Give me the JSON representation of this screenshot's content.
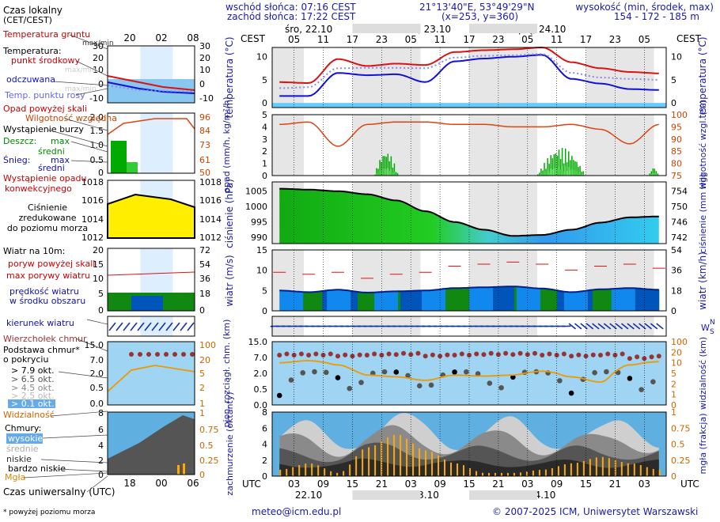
{
  "header": {
    "sunrise": "wschód słońca: 07:16 CEST",
    "sunset": "zachód słońca: 17:22 CEST",
    "coords": "21°13'40\"E, 53°49'29\"N",
    "grid": "(x=253, y=360)",
    "elev_title": "wysokość (min, środek, max)",
    "elev_values": "154 - 172 - 185 m"
  },
  "time": {
    "tz_top": "CEST",
    "tz_bottom": "UTC",
    "top_hours": [
      "05",
      "11",
      "17",
      "23",
      "05",
      "11",
      "17",
      "23",
      "05",
      "11",
      "17",
      "23",
      "05"
    ],
    "bottom_hours": [
      "03",
      "09",
      "15",
      "21",
      "03",
      "09",
      "15",
      "21",
      "03",
      "09",
      "15",
      "21",
      "03"
    ],
    "days": [
      "śro, 22.10",
      "czw, 23.10",
      "pią, 24.10"
    ],
    "days_bottom": [
      "22.10",
      "23.10",
      "24.10"
    ]
  },
  "legend": {
    "local_time": "Czas lokalny",
    "local_time2": "(CET/CEST)",
    "lt_hours": [
      "20",
      "02",
      "08"
    ],
    "ground_temp": "Temperatura gruntu",
    "maxmin": "max/min",
    "temp": "Temperatura:",
    "midpoint": "punkt środkowy",
    "maxmin2": "max/min",
    "felt": "odczuwana",
    "maxmin3": "max/min",
    "dewpoint": "Temp. punktu rosy",
    "precip_above": "Opad powyżej skali",
    "humidity": "Wilgotność względna",
    "storm": "Wystąpienie burzy",
    "rain": "Deszcz:",
    "max": "max",
    "mid": "średni",
    "snow": "Śnieg:",
    "max2": "max",
    "mid2": "średni",
    "conv": "Wystąpienie opadu",
    "conv2": "konwekcyjnego",
    "pressure1": "Ciśnienie",
    "pressure2": "zredukowane",
    "pressure3": "do poziomu morza",
    "wind10": "Wiatr na 10m:",
    "gust_above": "poryw powyżej skali",
    "gust_max": "max porywy wiatru",
    "wind_mean": "prędkość wiatru",
    "wind_mean2": "w środku obszaru",
    "wind_dir": "kierunek wiatru",
    "cloud_top": "Wierzchołek chmur",
    "cloud_base": "Podstawa chmur*",
    "cloud_base2": "o pokryciu",
    "okt79": "> 7.9 okt.",
    "okt65": "> 6.5 okt.",
    "okt45": "> 4.5 okt.",
    "okt25": "> 2.5 okt.",
    "okt01": "> 0.1 okt.",
    "visibility": "Widzialność",
    "clouds": "Chmury:",
    "high": "wysokie",
    "middle": "średnie",
    "low": "niskie",
    "vlow": "bardzo niskie",
    "fog": "Mgła",
    "utc": "Czas uniwersalny (UTC)",
    "utc_hours": [
      "18",
      "00",
      "06"
    ],
    "footnote": "* powyżej poziomu morza"
  },
  "footer": {
    "email": "meteo@icm.edu.pl",
    "copyright": "© 2007-2025 ICM, Uniwersytet Warszawski"
  },
  "colors": {
    "temp": "#dd1111",
    "felt": "#1111dd",
    "dew": "#8888ee",
    "humidity": "#dd4411",
    "rain": "#00aa00",
    "pressure": "#00cc00",
    "wind": "#0044aa",
    "gust": "#dd1111",
    "cloudtop": "#993333",
    "visibility": "#ee9900",
    "fog": "#ffaa00",
    "axis": "#1a1aa8"
  },
  "chart_data": [
    {
      "type": "line",
      "id": "temperature",
      "ylabel": "temperatura (°C)",
      "ylim": [
        -1,
        12
      ],
      "yticks": [
        0,
        5,
        10
      ],
      "x_hours_utc": [
        0,
        6,
        12,
        18,
        24,
        30,
        36,
        42,
        48,
        54,
        60,
        66,
        72,
        78
      ],
      "series": [
        {
          "name": "punkt środkowy",
          "values": [
            4.5,
            4.3,
            9.5,
            8.0,
            8.5,
            8.2,
            11.0,
            11.4,
            11.6,
            12.0,
            8.8,
            7.5,
            6.7,
            6.4
          ]
        },
        {
          "name": "odczuwana",
          "values": [
            1.5,
            1.5,
            6.5,
            6.0,
            6.2,
            4.5,
            9.0,
            9.6,
            10.0,
            10.4,
            5.2,
            4.2,
            3.0,
            2.8
          ]
        },
        {
          "name": "Temp. punktu rosy",
          "values": [
            3.2,
            3.4,
            7.5,
            7.6,
            7.6,
            7.5,
            9.8,
            10.2,
            10.3,
            10.6,
            6.5,
            5.5,
            5.2,
            5.0
          ]
        }
      ]
    },
    {
      "type": "bar",
      "id": "precip_humidity",
      "ylabel": "opad (mm/h, kg/m²/h)",
      "y2label": "wilgotność wzgl. (%)",
      "ylim": [
        0,
        5
      ],
      "y2lim": [
        75,
        100
      ],
      "yticks": [
        0,
        1,
        2,
        3,
        4,
        5
      ],
      "y2ticks": [
        75,
        80,
        85,
        90,
        95,
        100
      ],
      "humidity_x_hours_utc": [
        0,
        6,
        12,
        18,
        24,
        30,
        36,
        42,
        48,
        54,
        60,
        66,
        72,
        78
      ],
      "humidity": [
        96,
        97,
        87,
        96,
        97,
        97,
        96,
        96,
        95,
        95,
        96,
        94,
        88,
        96
      ],
      "rain_events": [
        {
          "center_hour_utc": 22,
          "width_h": 5,
          "peak_mm": 2.0
        },
        {
          "center_hour_utc": 58,
          "width_h": 10,
          "peak_mm": 2.3
        },
        {
          "center_hour_utc": 77,
          "width_h": 2,
          "peak_mm": 0.7
        }
      ]
    },
    {
      "type": "area",
      "id": "pressure",
      "ylabel": "ciśnienie (hPa)",
      "y2label": "ciśnienie (mm Hg)",
      "ylim": [
        988,
        1008
      ],
      "yticks": [
        990,
        995,
        1000,
        1005
      ],
      "y2ticks": [
        742,
        746,
        750,
        754
      ],
      "x_hours_utc": [
        0,
        6,
        12,
        18,
        24,
        30,
        36,
        42,
        48,
        54,
        60,
        66,
        72,
        78
      ],
      "values": [
        1005.8,
        1005.5,
        1005.0,
        1004.0,
        1002.0,
        998.5,
        995.0,
        992.5,
        990.5,
        990.8,
        992.5,
        994.8,
        996.5,
        996.8
      ]
    },
    {
      "type": "line",
      "id": "wind",
      "ylabel": "wiatr (m/s)",
      "y2label": "wiatr (km/h)",
      "ylim": [
        0,
        15
      ],
      "yticks": [
        0,
        5,
        10,
        15
      ],
      "y2ticks": [
        0,
        18,
        36,
        54
      ],
      "x_hours_utc": [
        0,
        6,
        12,
        18,
        24,
        30,
        36,
        42,
        48,
        54,
        60,
        66,
        72,
        78
      ],
      "series": [
        {
          "name": "max porywy wiatru",
          "values": [
            9.5,
            9.0,
            9.5,
            8.0,
            9.0,
            9.5,
            11.0,
            11.5,
            12.0,
            11.5,
            10.0,
            11.0,
            11.5,
            10.5
          ]
        },
        {
          "name": "prędkość wiatru",
          "values": [
            5.0,
            4.6,
            5.2,
            4.5,
            4.8,
            5.0,
            5.6,
            5.8,
            6.0,
            5.5,
            4.6,
            5.3,
            5.6,
            5.2
          ]
        }
      ]
    },
    {
      "type": "scatter",
      "id": "cloud_base",
      "ylabel": "pion. rozciągł. chm. (km)",
      "y2label": "widzialność (km)",
      "ylim": [
        0,
        15
      ],
      "yticks": [
        0.0,
        0.5,
        2.0,
        7.0,
        15.0
      ],
      "y2ticks": [
        0,
        1,
        2,
        5,
        10,
        20,
        100
      ],
      "visibility_x_hours_utc": [
        0,
        6,
        12,
        18,
        24,
        30,
        36,
        42,
        48,
        54,
        60,
        66,
        72,
        78
      ],
      "visibility": [
        10,
        12,
        9,
        4.5,
        4.0,
        3.0,
        4.5,
        4.2,
        4.5,
        6.0,
        4.0,
        2.5,
        9.0,
        11.0
      ],
      "cloud_top_km": [
        8.5,
        8.5,
        8.0,
        8.5,
        8.8,
        8.0,
        8.5,
        8.8,
        8.8,
        8.5,
        8.0,
        8.5,
        7.0,
        8.0
      ]
    },
    {
      "type": "area",
      "id": "clouds",
      "ylabel": "zachmurzenie (oktanty)",
      "y2label": "mgła (frakcja)",
      "ylim": [
        0,
        8
      ],
      "yticks": [
        0,
        2,
        4,
        6,
        8
      ],
      "y2ticks": [
        0,
        0.25,
        0.5,
        0.75,
        1
      ],
      "x_hours_utc": [
        0,
        6,
        12,
        18,
        24,
        30,
        36,
        42,
        48,
        54,
        60,
        66,
        72,
        78
      ],
      "total_oktas": [
        6.5,
        7.0,
        6.0,
        7.5,
        8.0,
        7.5,
        6.5,
        7.0,
        7.5,
        6.5,
        7.0,
        6.5,
        7.5,
        7.0
      ],
      "fog_fraction": [
        0.1,
        0.2,
        0.05,
        0.45,
        0.65,
        0.4,
        0.2,
        0.05,
        0.05,
        0.1,
        0.2,
        0.3,
        0.2,
        0.1
      ]
    }
  ]
}
